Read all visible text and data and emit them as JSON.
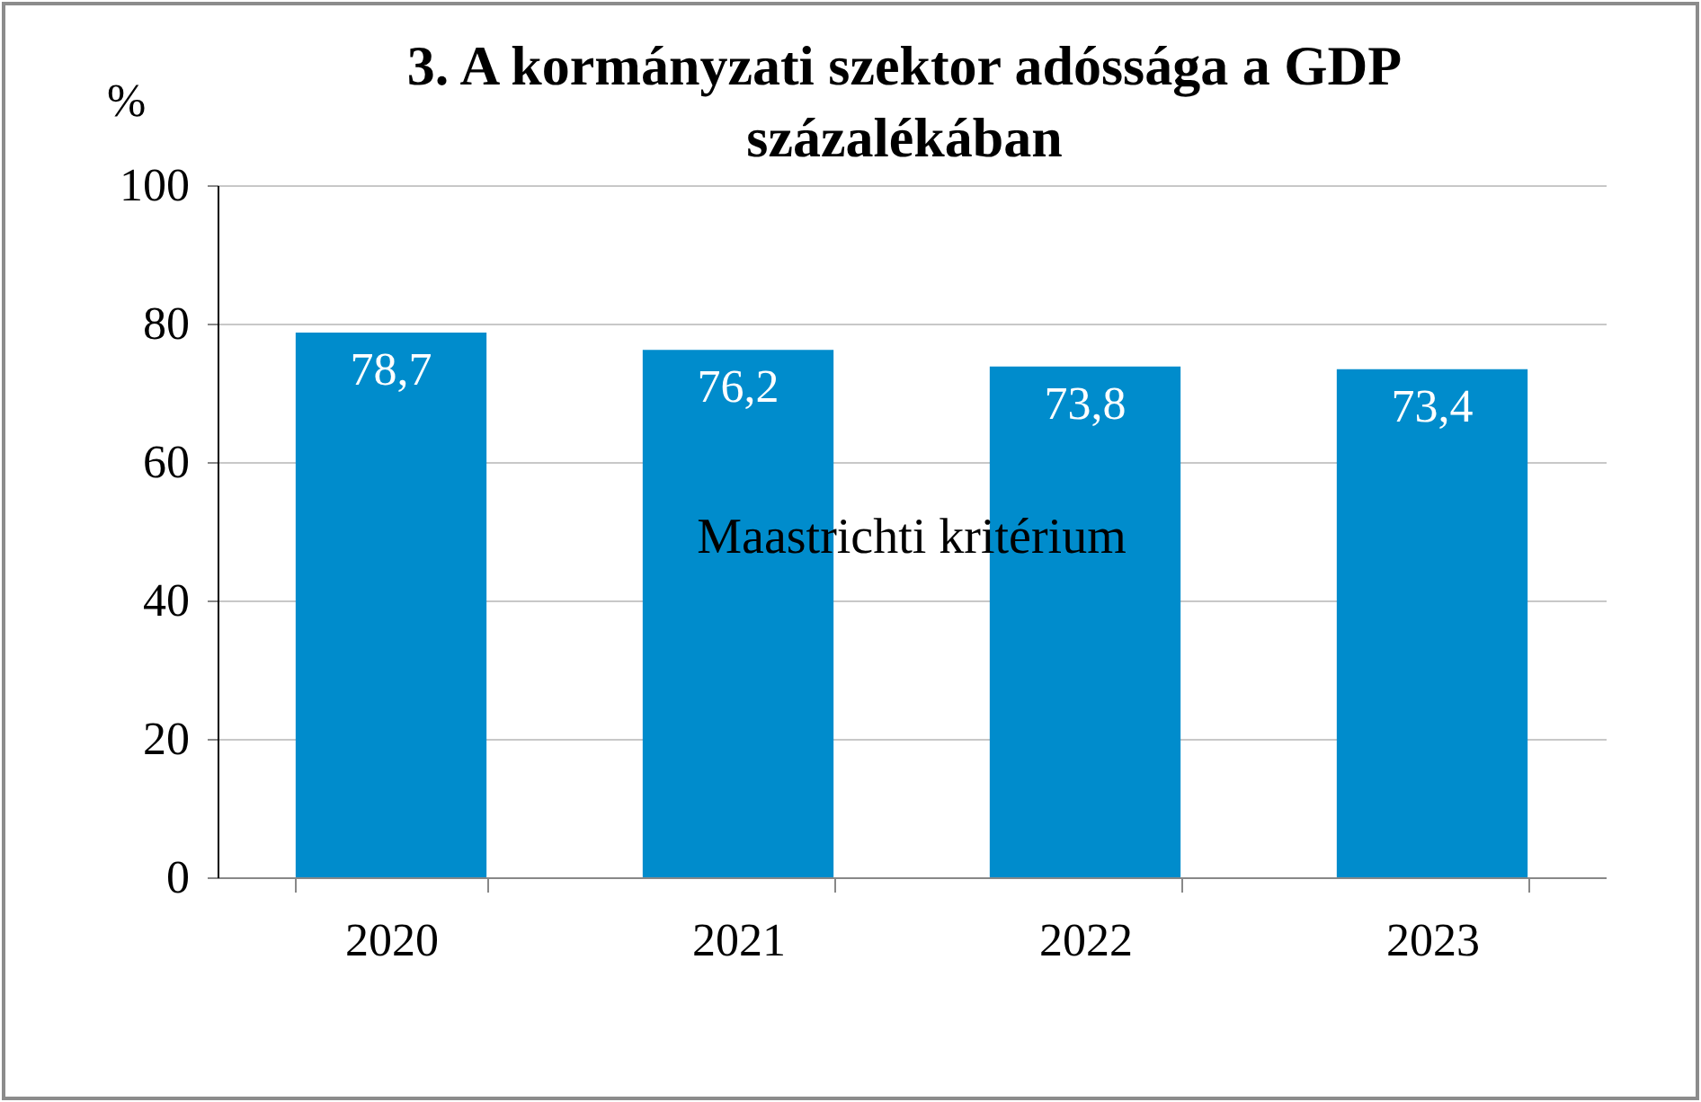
{
  "chart_data": {
    "type": "bar",
    "title": "3. A kormányzati szektor adóssága a GDP százalékában",
    "ylabel": "%",
    "categories": [
      "2020",
      "2021",
      "2022",
      "2023"
    ],
    "values": [
      78.7,
      76.2,
      73.8,
      73.4
    ],
    "color": "#008ccc",
    "ylim": [
      0,
      100
    ],
    "yticks": [
      0,
      20,
      40,
      60,
      80,
      100
    ],
    "grid": "y",
    "value_labels": [
      "78,7",
      "76,2",
      "73,8",
      "73,4"
    ],
    "annotations": [
      "Maastrichti kritérium"
    ]
  }
}
